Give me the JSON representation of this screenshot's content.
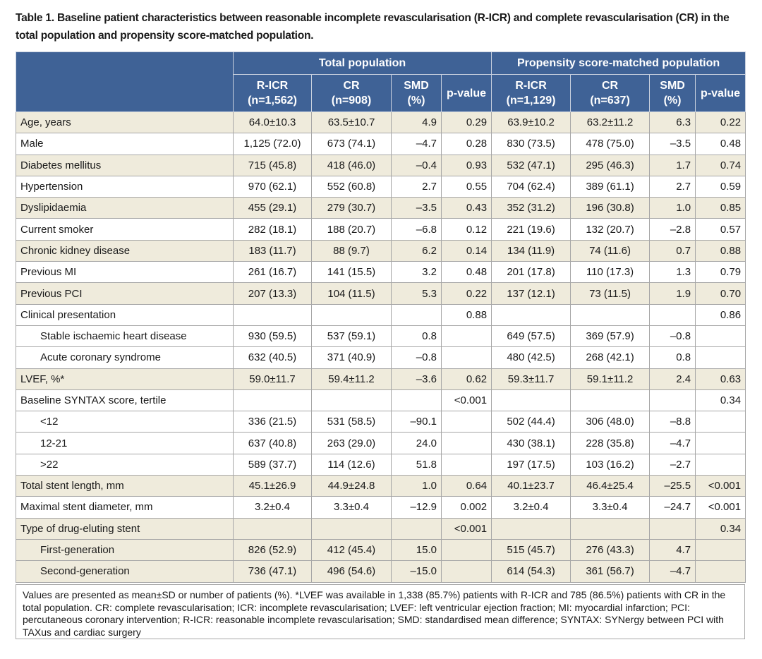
{
  "title": "Table 1. Baseline patient characteristics between reasonable incomplete revascularisation (R-ICR) and complete revascularisation (CR) in the total population and propensity score-matched population.",
  "table": {
    "group_headers": [
      "Total population",
      "Propensity score-matched population"
    ],
    "column_headers": [
      [
        "R-ICR",
        "(n=1,562)"
      ],
      [
        "CR",
        "(n=908)"
      ],
      [
        "SMD",
        "(%)"
      ],
      [
        "p-value"
      ],
      [
        "R-ICR",
        "(n=1,129)"
      ],
      [
        "CR",
        "(n=637)"
      ],
      [
        "SMD",
        "(%)"
      ],
      [
        "p-value"
      ]
    ],
    "groups": [
      {
        "label": "Age, years",
        "cells": [
          "64.0±10.3",
          "63.5±10.7",
          "4.9",
          "0.29",
          "63.9±10.2",
          "63.2±11.2",
          "6.3",
          "0.22"
        ]
      },
      {
        "label": "Male",
        "cells": [
          "1,125 (72.0)",
          "673 (74.1)",
          "–4.7",
          "0.28",
          "830 (73.5)",
          "478 (75.0)",
          "–3.5",
          "0.48"
        ]
      },
      {
        "label": "Diabetes mellitus",
        "cells": [
          "715 (45.8)",
          "418 (46.0)",
          "–0.4",
          "0.93",
          "532 (47.1)",
          "295 (46.3)",
          "1.7",
          "0.74"
        ]
      },
      {
        "label": "Hypertension",
        "cells": [
          "970 (62.1)",
          "552 (60.8)",
          "2.7",
          "0.55",
          "704 (62.4)",
          "389 (61.1)",
          "2.7",
          "0.59"
        ]
      },
      {
        "label": "Dyslipidaemia",
        "cells": [
          "455 (29.1)",
          "279 (30.7)",
          "–3.5",
          "0.43",
          "352 (31.2)",
          "196 (30.8)",
          "1.0",
          "0.85"
        ]
      },
      {
        "label": "Current smoker",
        "cells": [
          "282 (18.1)",
          "188 (20.7)",
          "–6.8",
          "0.12",
          "221 (19.6)",
          "132 (20.7)",
          "–2.8",
          "0.57"
        ]
      },
      {
        "label": "Chronic kidney disease",
        "cells": [
          "183 (11.7)",
          "88 (9.7)",
          "6.2",
          "0.14",
          "134 (11.9)",
          "74 (11.6)",
          "0.7",
          "0.88"
        ]
      },
      {
        "label": "Previous MI",
        "cells": [
          "261 (16.7)",
          "141 (15.5)",
          "3.2",
          "0.48",
          "201 (17.8)",
          "110 (17.3)",
          "1.3",
          "0.79"
        ]
      },
      {
        "label": "Previous PCI",
        "cells": [
          "207 (13.3)",
          "104 (11.5)",
          "5.3",
          "0.22",
          "137 (12.1)",
          "73 (11.5)",
          "1.9",
          "0.70"
        ]
      },
      {
        "label": "Clinical presentation",
        "cells": [
          null,
          null,
          null,
          "0.88",
          null,
          null,
          null,
          "0.86"
        ],
        "rows": [
          {
            "label": "Stable ischaemic heart disease",
            "cells": [
              "930 (59.5)",
              "537 (59.1)",
              "0.8",
              null,
              "649 (57.5)",
              "369 (57.9)",
              "–0.8",
              null
            ]
          },
          {
            "label": "Acute coronary syndrome",
            "cells": [
              "632 (40.5)",
              "371 (40.9)",
              "–0.8",
              null,
              "480 (42.5)",
              "268 (42.1)",
              "0.8",
              null
            ]
          }
        ]
      },
      {
        "label": "LVEF, %*",
        "cells": [
          "59.0±11.7",
          "59.4±11.2",
          "–3.6",
          "0.62",
          "59.3±11.7",
          "59.1±11.2",
          "2.4",
          "0.63"
        ]
      },
      {
        "label": "Baseline SYNTAX score, tertile",
        "cells": [
          null,
          null,
          null,
          "<0.001",
          null,
          null,
          null,
          "0.34"
        ],
        "rows": [
          {
            "label": "<12",
            "cells": [
              "336 (21.5)",
              "531 (58.5)",
              "–90.1",
              null,
              "502 (44.4)",
              "306 (48.0)",
              "–8.8",
              null
            ]
          },
          {
            "label": "12-21",
            "cells": [
              "637 (40.8)",
              "263 (29.0)",
              "24.0",
              null,
              "430 (38.1)",
              "228 (35.8)",
              "–4.7",
              null
            ]
          },
          {
            "label": ">22",
            "cells": [
              "589 (37.7)",
              "114 (12.6)",
              "51.8",
              null,
              "197 (17.5)",
              "103 (16.2)",
              "–2.7",
              null
            ]
          }
        ]
      },
      {
        "label": "Total stent length, mm",
        "cells": [
          "45.1±26.9",
          "44.9±24.8",
          "1.0",
          "0.64",
          "40.1±23.7",
          "46.4±25.4",
          "–25.5",
          "<0.001"
        ]
      },
      {
        "label": "Maximal stent diameter, mm",
        "cells": [
          "3.2±0.4",
          "3.3±0.4",
          "–12.9",
          "0.002",
          "3.2±0.4",
          "3.3±0.4",
          "–24.7",
          "<0.001"
        ]
      },
      {
        "label": "Type of drug-eluting stent",
        "cells": [
          null,
          null,
          null,
          "<0.001",
          null,
          null,
          null,
          "0.34"
        ],
        "rows": [
          {
            "label": "First-generation",
            "cells": [
              "826 (52.9)",
              "412 (45.4)",
              "15.0",
              null,
              "515 (45.7)",
              "276 (43.3)",
              "4.7",
              null
            ]
          },
          {
            "label": "Second-generation",
            "cells": [
              "736 (47.1)",
              "496 (54.6)",
              "–15.0",
              null,
              "614 (54.3)",
              "361 (56.7)",
              "–4.7",
              null
            ]
          }
        ]
      }
    ]
  },
  "footnote": "Values are presented as mean±SD or number of patients (%). *LVEF was available in 1,338 (85.7%) patients with R-ICR and 785 (86.5%) patients with CR in the total population. CR: complete revascularisation; ICR: incomplete revascularisation; LVEF: left ventricular ejection fraction; MI: myocardial infarction; PCI: percutaneous coronary intervention; R-ICR: reasonable incomplete revascularisation; SMD: standardised mean difference; SYNTAX: SYNergy between PCI with TAXus and cardiac surgery"
}
